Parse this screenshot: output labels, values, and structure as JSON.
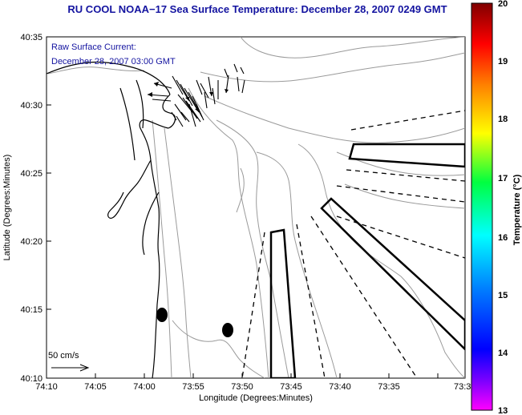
{
  "title": "RU COOL  NOAA−17  Sea Surface Temperature:  December 28, 2007 0249 GMT",
  "current_label": "Raw Surface Current:",
  "current_time": "December 28, 2007 03:00 GMT",
  "scale_label": "50 cm/s",
  "xlabel": "Longitude (Degrees:Minutes)",
  "ylabel": "Latitude (Degrees:Minutes)",
  "x_ticks": [
    "74:10",
    "74:05",
    "74:00",
    "73:55",
    "73:50",
    "73:45",
    "73:40",
    "73:35",
    "73:3"
  ],
  "y_ticks": [
    "40:35",
    "40:30",
    "40:25",
    "40:20",
    "40:15",
    "40:10"
  ],
  "colorbar": {
    "label": "Temperature (°C)",
    "ticks": [
      "20",
      "19",
      "18",
      "17",
      "16",
      "15",
      "14",
      "13"
    ],
    "min": 13,
    "max": 20,
    "colors": [
      "#ff00ff",
      "#0000ff",
      "#00ffff",
      "#00ff00",
      "#ffff00",
      "#ff8000",
      "#ff0000",
      "#800000"
    ]
  },
  "colors": {
    "title": "#1414a0",
    "contour": "#9a9a9a",
    "coast": "#000000"
  }
}
